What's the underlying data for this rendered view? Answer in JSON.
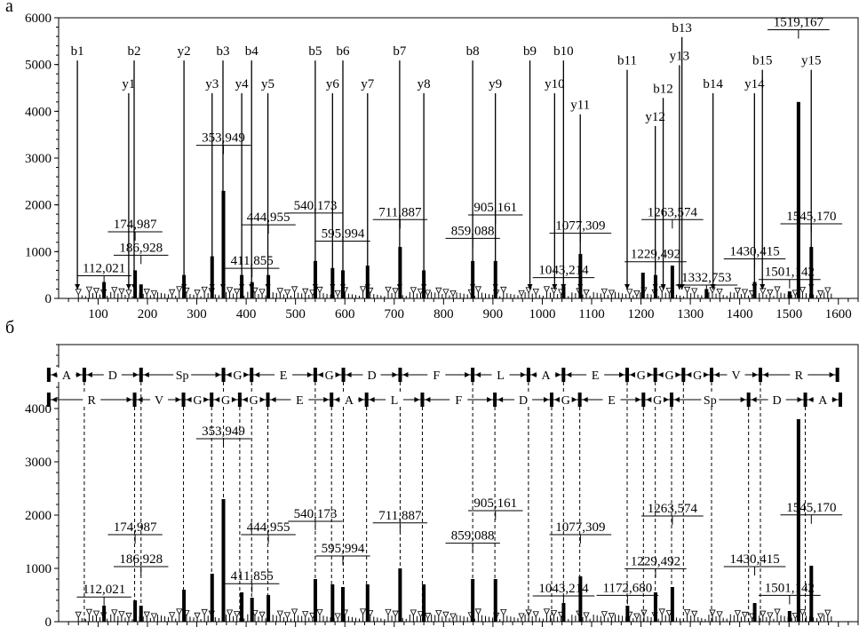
{
  "panel_labels": {
    "a": "а",
    "b": "б"
  },
  "chart_data": [
    {
      "type": "bar",
      "title": "",
      "xlabel": "",
      "ylabel": "",
      "xlim": [
        20,
        1640
      ],
      "ylim": [
        0,
        6000
      ],
      "x_ticks": [
        100,
        200,
        300,
        400,
        500,
        600,
        700,
        800,
        900,
        1000,
        1100,
        1200,
        1300,
        1400,
        1500,
        1600
      ],
      "y_ticks": [
        0,
        1000,
        2000,
        3000,
        4000,
        5000,
        6000
      ],
      "peaks": [
        {
          "x": 112.021,
          "y": 350
        },
        {
          "x": 174.987,
          "y": 600
        },
        {
          "x": 186.928,
          "y": 300
        },
        {
          "x": 274,
          "y": 500
        },
        {
          "x": 331,
          "y": 900
        },
        {
          "x": 353.949,
          "y": 2300
        },
        {
          "x": 391,
          "y": 500
        },
        {
          "x": 411.855,
          "y": 350
        },
        {
          "x": 444.955,
          "y": 500
        },
        {
          "x": 540.173,
          "y": 800
        },
        {
          "x": 575,
          "y": 650
        },
        {
          "x": 595.994,
          "y": 600
        },
        {
          "x": 646,
          "y": 700
        },
        {
          "x": 711.887,
          "y": 1100
        },
        {
          "x": 760,
          "y": 600
        },
        {
          "x": 859.088,
          "y": 800
        },
        {
          "x": 905.161,
          "y": 800
        },
        {
          "x": 1043.214,
          "y": 250
        },
        {
          "x": 1077.309,
          "y": 950
        },
        {
          "x": 1204,
          "y": 550
        },
        {
          "x": 1229.492,
          "y": 500
        },
        {
          "x": 1263.574,
          "y": 700
        },
        {
          "x": 1332.753,
          "y": 200
        },
        {
          "x": 1430.415,
          "y": 350
        },
        {
          "x": 1501.142,
          "y": 150
        },
        {
          "x": 1519.167,
          "y": 4200
        },
        {
          "x": 1545.17,
          "y": 1100
        }
      ],
      "ion_labels": [
        {
          "name": "b1",
          "x": 58,
          "y": 5200
        },
        {
          "name": "b2",
          "x": 173,
          "y": 5200
        },
        {
          "name": "y1",
          "x": 162,
          "y": 4500
        },
        {
          "name": "y2",
          "x": 274,
          "y": 5200
        },
        {
          "name": "b3",
          "x": 353,
          "y": 5200
        },
        {
          "name": "y3",
          "x": 331,
          "y": 4500
        },
        {
          "name": "b4",
          "x": 411,
          "y": 5200
        },
        {
          "name": "y4",
          "x": 391,
          "y": 4500
        },
        {
          "name": "y5",
          "x": 444,
          "y": 4500
        },
        {
          "name": "b5",
          "x": 540,
          "y": 5200
        },
        {
          "name": "b6",
          "x": 596,
          "y": 5200
        },
        {
          "name": "y6",
          "x": 575,
          "y": 4500
        },
        {
          "name": "y7",
          "x": 646,
          "y": 4500
        },
        {
          "name": "b7",
          "x": 711,
          "y": 5200
        },
        {
          "name": "y8",
          "x": 760,
          "y": 4500
        },
        {
          "name": "b8",
          "x": 859,
          "y": 5200
        },
        {
          "name": "y9",
          "x": 905,
          "y": 4500
        },
        {
          "name": "b9",
          "x": 975,
          "y": 5200
        },
        {
          "name": "b10",
          "x": 1043,
          "y": 5200
        },
        {
          "name": "y10",
          "x": 1025,
          "y": 4500
        },
        {
          "name": "y11",
          "x": 1077,
          "y": 4050
        },
        {
          "name": "b11",
          "x": 1172,
          "y": 5000
        },
        {
          "name": "y12",
          "x": 1229,
          "y": 3800
        },
        {
          "name": "b12",
          "x": 1245,
          "y": 4400
        },
        {
          "name": "b13",
          "x": 1283,
          "y": 5700
        },
        {
          "name": "y13",
          "x": 1278,
          "y": 5100
        },
        {
          "name": "b14",
          "x": 1346,
          "y": 4500
        },
        {
          "name": "y14",
          "x": 1430,
          "y": 4500
        },
        {
          "name": "b15",
          "x": 1446,
          "y": 5000
        },
        {
          "name": "y15",
          "x": 1545,
          "y": 5000
        }
      ],
      "mass_labels": [
        {
          "text": "112,021",
          "x": 112.021,
          "y": 560
        },
        {
          "text": "174,987",
          "x": 174.987,
          "y": 1500
        },
        {
          "text": "186,928",
          "x": 186.928,
          "y": 1000
        },
        {
          "text": "353,949",
          "x": 353.949,
          "y": 3350
        },
        {
          "text": "444,955",
          "x": 444.955,
          "y": 1650
        },
        {
          "text": "411,855",
          "x": 411.855,
          "y": 720
        },
        {
          "text": "540,173",
          "x": 540.173,
          "y": 1900
        },
        {
          "text": "595,994",
          "x": 595.994,
          "y": 1300
        },
        {
          "text": "711,887",
          "x": 711.887,
          "y": 1760
        },
        {
          "text": "859,088",
          "x": 859.088,
          "y": 1360
        },
        {
          "text": "905,161",
          "x": 905.161,
          "y": 1860
        },
        {
          "text": "1043,214",
          "x": 1043.214,
          "y": 520
        },
        {
          "text": "1077,309",
          "x": 1077.309,
          "y": 1470
        },
        {
          "text": "1229,492",
          "x": 1229.492,
          "y": 860
        },
        {
          "text": "1263,574",
          "x": 1263.574,
          "y": 1760
        },
        {
          "text": "1332,753",
          "x": 1332.753,
          "y": 360
        },
        {
          "text": "1430,415",
          "x": 1430.415,
          "y": 920
        },
        {
          "text": "1501,142",
          "x": 1501.142,
          "y": 480
        },
        {
          "text": "1519,167",
          "x": 1519.167,
          "y": 5820
        },
        {
          "text": "1545,170",
          "x": 1545.17,
          "y": 1670
        }
      ]
    },
    {
      "type": "bar",
      "title": "",
      "xlabel": "",
      "ylabel": "",
      "xlim": [
        20,
        1640
      ],
      "ylim": [
        0,
        5200
      ],
      "y_ticks": [
        0,
        1000,
        2000,
        3000,
        4000
      ],
      "peaks": [
        {
          "x": 112.021,
          "y": 300
        },
        {
          "x": 174.987,
          "y": 400
        },
        {
          "x": 186.928,
          "y": 300
        },
        {
          "x": 274,
          "y": 600
        },
        {
          "x": 331,
          "y": 900
        },
        {
          "x": 353.949,
          "y": 2300
        },
        {
          "x": 391,
          "y": 550
        },
        {
          "x": 411.855,
          "y": 450
        },
        {
          "x": 444.955,
          "y": 500
        },
        {
          "x": 540.173,
          "y": 800
        },
        {
          "x": 575,
          "y": 700
        },
        {
          "x": 595.994,
          "y": 650
        },
        {
          "x": 646,
          "y": 700
        },
        {
          "x": 711.887,
          "y": 1000
        },
        {
          "x": 760,
          "y": 700
        },
        {
          "x": 859.088,
          "y": 800
        },
        {
          "x": 905.161,
          "y": 800
        },
        {
          "x": 1043.214,
          "y": 350
        },
        {
          "x": 1077.309,
          "y": 850
        },
        {
          "x": 1172.68,
          "y": 300
        },
        {
          "x": 1229.492,
          "y": 550
        },
        {
          "x": 1263.574,
          "y": 650
        },
        {
          "x": 1430.415,
          "y": 350
        },
        {
          "x": 1501.142,
          "y": 200
        },
        {
          "x": 1519.167,
          "y": 3800
        },
        {
          "x": 1545.17,
          "y": 1050
        }
      ],
      "mass_labels": [
        {
          "text": "112,021",
          "x": 112.021,
          "y": 530
        },
        {
          "text": "174,987",
          "x": 174.987,
          "y": 1700
        },
        {
          "text": "186,928",
          "x": 186.928,
          "y": 1100
        },
        {
          "text": "353,949",
          "x": 353.949,
          "y": 3500
        },
        {
          "text": "444,955",
          "x": 444.955,
          "y": 1700
        },
        {
          "text": "411,855",
          "x": 411.855,
          "y": 780
        },
        {
          "text": "540,173",
          "x": 540.173,
          "y": 1950
        },
        {
          "text": "595,994",
          "x": 595.994,
          "y": 1300
        },
        {
          "text": "711,887",
          "x": 711.887,
          "y": 1920
        },
        {
          "text": "859,088",
          "x": 859.088,
          "y": 1540
        },
        {
          "text": "905,161",
          "x": 905.161,
          "y": 2150
        },
        {
          "text": "1043,214",
          "x": 1043.214,
          "y": 550
        },
        {
          "text": "1077,309",
          "x": 1077.309,
          "y": 1700
        },
        {
          "text": "1229,492",
          "x": 1229.492,
          "y": 1060
        },
        {
          "text": "1172,680",
          "x": 1172.68,
          "y": 560
        },
        {
          "text": "1263,574",
          "x": 1263.574,
          "y": 2050
        },
        {
          "text": "1430,415",
          "x": 1430.415,
          "y": 1100
        },
        {
          "text": "1501,142",
          "x": 1501.142,
          "y": 560
        },
        {
          "text": "1545,170",
          "x": 1545.17,
          "y": 2070
        }
      ],
      "sequence_b": [
        "A",
        "D",
        "Sp",
        "G",
        "E",
        "G",
        "D",
        "F",
        "L",
        "A",
        "E",
        "G",
        "G",
        "G",
        "V",
        "R"
      ],
      "sequence_y": [
        "R",
        "V",
        "G",
        "G",
        "G",
        "E",
        "A",
        "L",
        "F",
        "D",
        "G",
        "E",
        "G",
        "Sp",
        "D",
        "A"
      ],
      "b_series": [
        0,
        72,
        187,
        354,
        411,
        540,
        597,
        712,
        859,
        972,
        1043,
        1172,
        1229,
        1286,
        1343,
        1442,
        1598
      ],
      "y_series": [
        0,
        174,
        273,
        330,
        387,
        444,
        573,
        644,
        757,
        904,
        1019,
        1076,
        1205,
        1262,
        1418,
        1533,
        1604
      ]
    }
  ]
}
